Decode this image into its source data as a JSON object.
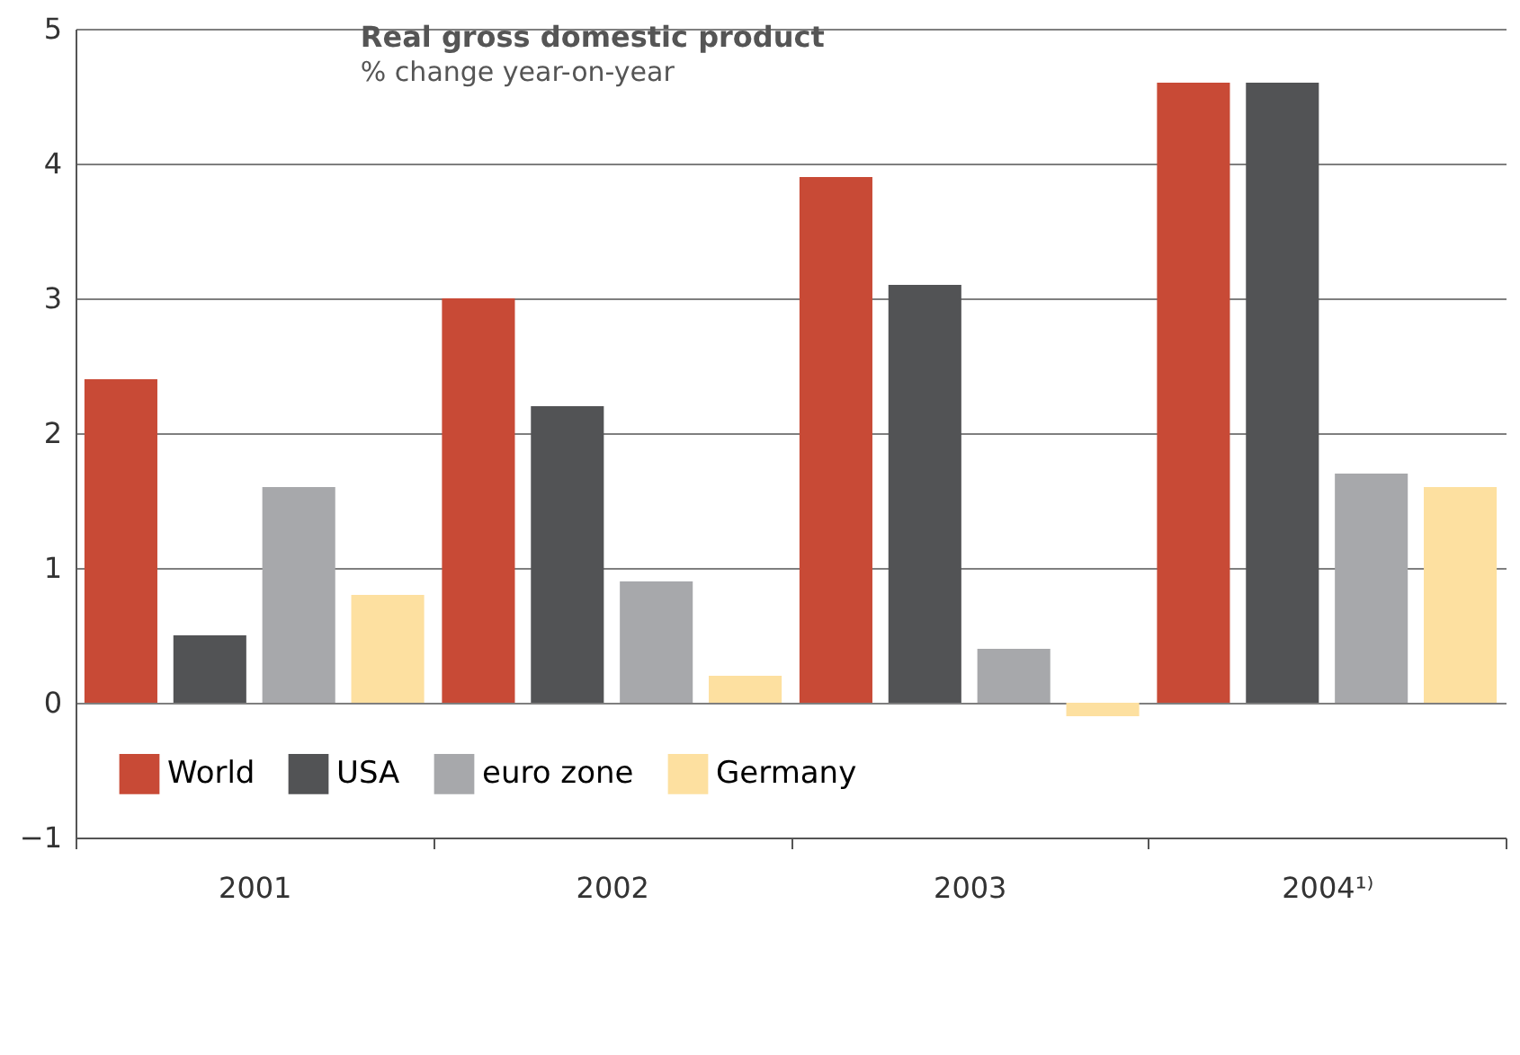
{
  "chart_data": {
    "type": "bar",
    "title": "Real gross domestic product",
    "subtitle": "% change year-on-year",
    "categories": [
      "2001",
      "2002",
      "2003",
      "2004¹⁾"
    ],
    "series": [
      {
        "name": "World",
        "color": "#c84a36",
        "values": [
          2.4,
          3.0,
          3.9,
          4.6
        ]
      },
      {
        "name": "USA",
        "color": "#525355",
        "values": [
          0.5,
          2.2,
          3.1,
          4.6
        ]
      },
      {
        "name": "euro zone",
        "color": "#a7a8ab",
        "values": [
          1.6,
          0.9,
          0.4,
          1.7
        ]
      },
      {
        "name": "Germany",
        "color": "#fde0a0",
        "values": [
          0.8,
          0.2,
          -0.1,
          1.6
        ]
      }
    ],
    "ylim": [
      -1,
      5
    ],
    "yticks": [
      -1,
      0,
      1,
      2,
      3,
      4,
      5
    ],
    "grid": "y",
    "legend": "bottom left"
  }
}
